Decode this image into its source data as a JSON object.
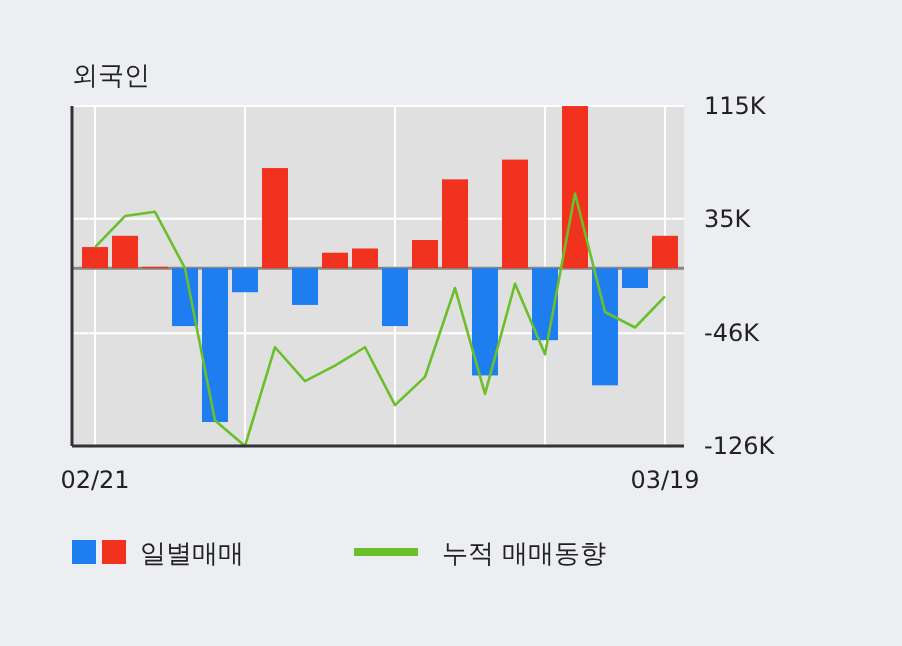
{
  "chart_data": {
    "type": "bar",
    "title": "외국인",
    "categories": [
      "02/21",
      null,
      null,
      null,
      null,
      null,
      null,
      null,
      null,
      null,
      null,
      null,
      null,
      null,
      null,
      null,
      null,
      null,
      null,
      "03/19"
    ],
    "series": [
      {
        "name": "일별매매",
        "colors": [
          "#f0321e",
          "#f0321e",
          "#f0321e",
          "#1e7ef0",
          "#1e7ef0",
          "#1e7ef0",
          "#f0321e",
          "#1e7ef0",
          "#f0321e",
          "#f0321e",
          "#1e7ef0",
          "#f0321e",
          "#f0321e",
          "#1e7ef0",
          "#f0321e",
          "#1e7ef0",
          "#f0321e",
          "#1e7ef0",
          "#1e7ef0",
          "#f0321e"
        ],
        "values": [
          15000,
          23000,
          1000,
          -41000,
          -109000,
          -17000,
          71000,
          -26000,
          11000,
          14000,
          -41000,
          20000,
          63000,
          -76000,
          77000,
          -51000,
          115000,
          -83000,
          -14000,
          23000
        ]
      },
      {
        "name": "누적 매매동향",
        "type": "line",
        "color": "#6abf2a",
        "values": [
          15000,
          37000,
          40000,
          0,
          -108000,
          -126000,
          -56000,
          -80000,
          -69000,
          -56000,
          -97000,
          -77000,
          -14000,
          -89000,
          -11000,
          -61000,
          53000,
          -31000,
          -42000,
          -20000
        ]
      }
    ],
    "ylim": [
      -126000,
      115000
    ],
    "yticks": [
      {
        "value": 115000,
        "label": "115K"
      },
      {
        "value": 35000,
        "label": "35K"
      },
      {
        "value": -46000,
        "label": "-46K"
      },
      {
        "value": -126000,
        "label": "-126K"
      }
    ],
    "grid": true,
    "legend": "bottom",
    "marker": "none"
  }
}
